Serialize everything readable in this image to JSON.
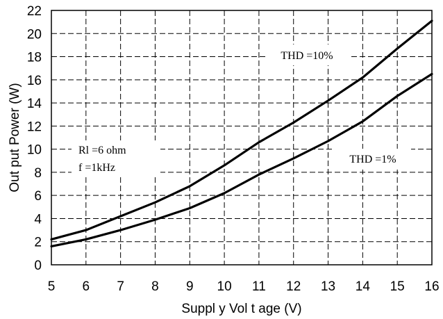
{
  "chart_data": {
    "type": "line",
    "xlabel": "Suppl y  Vol t age  (V)",
    "ylabel": "Out put   Power  (W)",
    "xlim": [
      5,
      16
    ],
    "ylim": [
      0,
      22
    ],
    "xticks": [
      "5",
      "6",
      "7",
      "8",
      "9",
      "10",
      "11",
      "12",
      "13",
      "14",
      "15",
      "16"
    ],
    "yticks": [
      "0",
      "2",
      "4",
      "6",
      "8",
      "10",
      "12",
      "14",
      "16",
      "18",
      "20",
      "22"
    ],
    "grid": true,
    "series": [
      {
        "name": "THD =10%",
        "x": [
          5,
          6,
          7,
          8,
          9,
          10,
          11,
          12,
          13,
          14,
          15,
          16
        ],
        "y": [
          2.2,
          3.0,
          4.2,
          5.4,
          6.8,
          8.6,
          10.6,
          12.3,
          14.2,
          16.2,
          18.7,
          21.1
        ]
      },
      {
        "name": "THD =1%",
        "x": [
          5,
          6,
          7,
          8,
          9,
          10,
          11,
          12,
          13,
          14,
          15,
          16
        ],
        "y": [
          1.6,
          2.2,
          3.0,
          3.9,
          4.9,
          6.2,
          7.8,
          9.2,
          10.7,
          12.4,
          14.6,
          16.5
        ]
      }
    ],
    "annotations": {
      "condition_line1": "Rl =6 ohm",
      "condition_line2": "f =1kHz"
    }
  }
}
